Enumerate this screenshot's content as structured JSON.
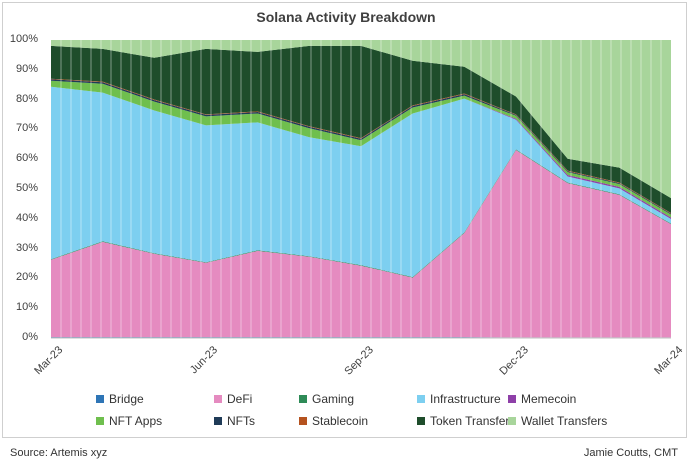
{
  "chart_data": {
    "type": "area",
    "stacked": true,
    "normalized": true,
    "title": "Solana Activity Breakdown",
    "xlabel": "",
    "ylabel": "",
    "ylim": [
      0,
      100
    ],
    "y_ticks": [
      "0%",
      "10%",
      "20%",
      "30%",
      "40%",
      "50%",
      "60%",
      "70%",
      "80%",
      "90%",
      "100%"
    ],
    "x_ticks": [
      "Mar-23",
      "Jun-23",
      "Sep-23",
      "Dec-23",
      "Mar-24"
    ],
    "x": [
      "Mar-23",
      "Apr-23",
      "May-23",
      "Jun-23",
      "Jul-23",
      "Aug-23",
      "Sep-23",
      "Oct-23",
      "Nov-23",
      "Dec-23",
      "Jan-24",
      "Feb-24",
      "Mar-24"
    ],
    "series": [
      {
        "name": "Bridge",
        "color": "#2e75b6",
        "values": [
          0.3,
          0.3,
          0.3,
          0.3,
          0.3,
          0.3,
          0.3,
          0.3,
          0.3,
          0.2,
          0.2,
          0.2,
          0.2
        ]
      },
      {
        "name": "DeFi",
        "color": "#e58bc0",
        "values": [
          26,
          32,
          28,
          25,
          29,
          27,
          24,
          20,
          35,
          63,
          52,
          48,
          38
        ]
      },
      {
        "name": "Gaming",
        "color": "#2e8b57",
        "values": [
          0.2,
          0.2,
          0.2,
          0.2,
          0.2,
          0.2,
          0.2,
          0.2,
          0.2,
          0.2,
          0.2,
          0.2,
          0.2
        ]
      },
      {
        "name": "Infrastructure",
        "color": "#7dcff0",
        "values": [
          58,
          50,
          48,
          46,
          43,
          40,
          40,
          55,
          45,
          10,
          2,
          2,
          1.5
        ]
      },
      {
        "name": "Memecoin",
        "color": "#8e3fa8",
        "values": [
          0,
          0,
          0,
          0,
          0,
          0,
          0,
          0,
          0,
          0.3,
          0.5,
          0.5,
          0.5
        ]
      },
      {
        "name": "NFT Apps",
        "color": "#6fbf4e",
        "values": [
          2,
          3,
          3,
          3,
          3,
          3,
          2,
          2,
          1,
          1,
          1,
          1,
          1
        ]
      },
      {
        "name": "NFTs",
        "color": "#1f3b57",
        "values": [
          0.5,
          0.5,
          0.5,
          0.5,
          0.5,
          0.5,
          0.5,
          0.5,
          0.5,
          0.3,
          0.3,
          0.3,
          0.3
        ]
      },
      {
        "name": "Stablecoin",
        "color": "#b5531f",
        "values": [
          0.2,
          0.2,
          0.2,
          0.2,
          0.2,
          0.2,
          0.2,
          0.2,
          0.2,
          0.2,
          0.2,
          0.2,
          0.2
        ]
      },
      {
        "name": "Token Transfers",
        "color": "#1e4d2b",
        "values": [
          11,
          11,
          14,
          22,
          20,
          27,
          31,
          15,
          9,
          6,
          4,
          5,
          5
        ]
      },
      {
        "name": "Wallet Transfers",
        "color": "#a8d59b",
        "values": [
          2,
          3,
          6,
          3,
          4,
          2,
          2,
          7,
          9,
          19,
          40,
          43,
          53
        ]
      }
    ]
  },
  "source": "Source: Artemis xyz",
  "credit": "Jamie Coutts, CMT"
}
